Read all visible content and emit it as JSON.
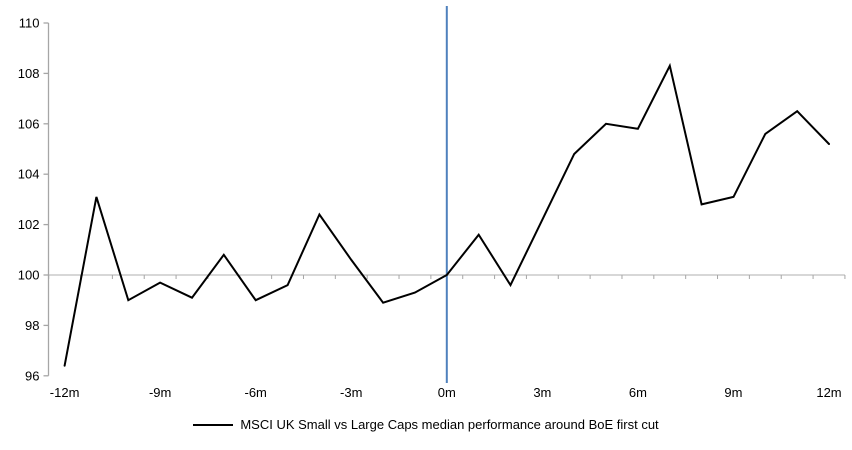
{
  "chart_data": {
    "type": "line",
    "title": "",
    "x": [
      -12,
      -11,
      -10,
      -9,
      -8,
      -7,
      -6,
      -5,
      -4,
      -3,
      -2,
      -1,
      0,
      1,
      2,
      3,
      4,
      5,
      6,
      7,
      8,
      9,
      10,
      11,
      12
    ],
    "series": [
      {
        "name": "MSCI UK Small vs Large Caps median performance around BoE first cut",
        "values": [
          96.4,
          103.1,
          99.0,
          99.7,
          99.1,
          100.8,
          99.0,
          99.6,
          102.4,
          100.6,
          98.9,
          99.3,
          100.0,
          101.6,
          99.6,
          102.2,
          104.8,
          106.0,
          105.8,
          108.3,
          102.8,
          103.1,
          105.6,
          106.5,
          105.2
        ]
      }
    ],
    "xlabel": "",
    "ylabel": "",
    "ylim": [
      96,
      110
    ],
    "y_tick_step": 2,
    "y_tick_labels": [
      "96",
      "98",
      "100",
      "102",
      "104",
      "106",
      "108",
      "110"
    ],
    "x_tick_months": [
      -12,
      -9,
      -6,
      -3,
      0,
      3,
      6,
      9,
      12
    ],
    "x_tick_labels": [
      "-12m",
      "-9m",
      "-6m",
      "-3m",
      "0m",
      "3m",
      "6m",
      "9m",
      "12m"
    ],
    "baseline_value": 100,
    "event_line_month": 0,
    "grid": "baseline-only",
    "legend_position": "bottom-center",
    "colors": {
      "series_line": "#000000",
      "event_line": "#4F81BD",
      "baseline_line": "#BFBFBF",
      "axis_line": "#A6A6A6",
      "tick_mark": "#A6A6A6",
      "text": "#000000"
    }
  }
}
